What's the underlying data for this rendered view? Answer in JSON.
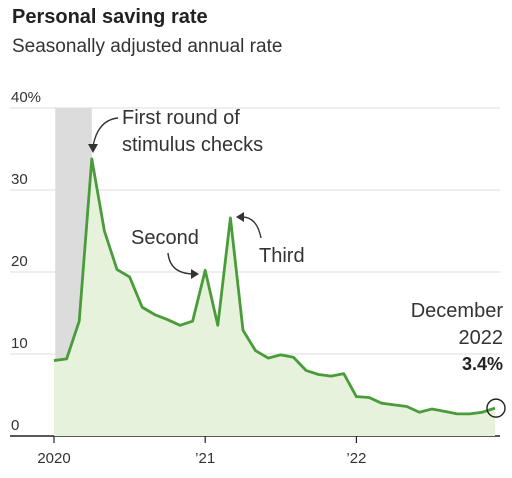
{
  "title": "Personal saving rate",
  "subtitle": "Seasonally adjusted annual rate",
  "colors": {
    "line": "#4a9c3a",
    "area": "#e6f2dc",
    "shade": "#dcdcdc",
    "grid": "#dddddd"
  },
  "chart_data": {
    "type": "area",
    "ylim": [
      0,
      40
    ],
    "y_ticks": [
      {
        "value": 0,
        "label": "0"
      },
      {
        "value": 10,
        "label": "10"
      },
      {
        "value": 20,
        "label": "20"
      },
      {
        "value": 30,
        "label": "30"
      },
      {
        "value": 40,
        "label": "40%"
      }
    ],
    "x_ticks": [
      {
        "value": "2020-01",
        "label": "2020"
      },
      {
        "value": "2021-01",
        "label": "’21"
      },
      {
        "value": "2022-01",
        "label": "’22"
      }
    ],
    "shaded_period": [
      "2020-02",
      "2020-04"
    ],
    "series": [
      {
        "x": [
          "2020-01",
          "2020-02",
          "2020-03",
          "2020-04",
          "2020-05",
          "2020-06",
          "2020-07",
          "2020-08",
          "2020-09",
          "2020-10",
          "2020-11",
          "2020-12",
          "2021-01",
          "2021-02",
          "2021-03",
          "2021-04",
          "2021-05",
          "2021-06",
          "2021-07",
          "2021-08",
          "2021-09",
          "2021-10",
          "2021-11",
          "2021-12",
          "2022-01",
          "2022-02",
          "2022-03",
          "2022-04",
          "2022-05",
          "2022-06",
          "2022-07",
          "2022-08",
          "2022-09",
          "2022-10",
          "2022-11",
          "2022-12"
        ],
        "values": [
          9.2,
          9.4,
          14.0,
          33.8,
          25.0,
          20.3,
          19.4,
          15.7,
          14.8,
          14.2,
          13.5,
          14.0,
          20.2,
          13.5,
          26.6,
          12.9,
          10.4,
          9.5,
          9.9,
          9.6,
          8.0,
          7.5,
          7.3,
          7.6,
          4.8,
          4.7,
          4.0,
          3.8,
          3.6,
          2.9,
          3.3,
          3.0,
          2.7,
          2.7,
          2.9,
          3.4
        ]
      }
    ],
    "annotations": {
      "first": [
        "First round of",
        "stimulus checks"
      ],
      "second": "Second",
      "third": "Third",
      "december": [
        "December",
        "2022"
      ],
      "december_value": "3.4%"
    }
  }
}
